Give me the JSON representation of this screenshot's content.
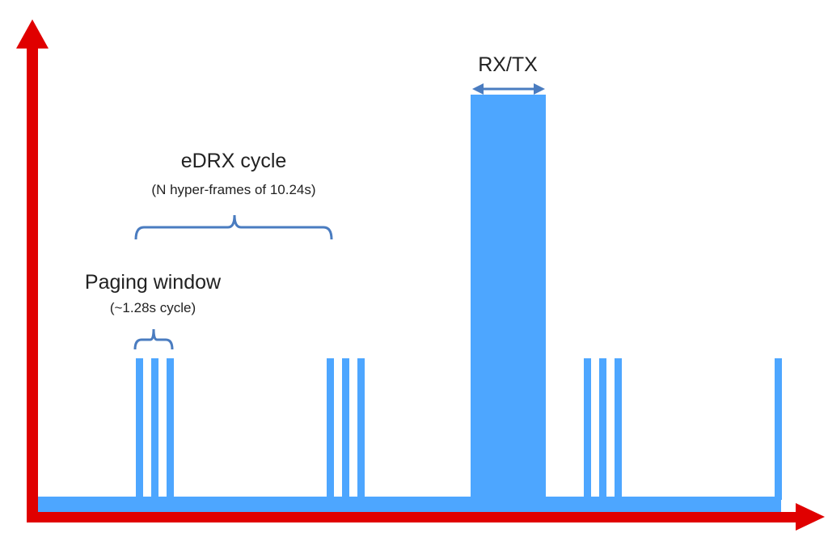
{
  "labels": {
    "rx_tx": "RX/TX",
    "edrx_title": "eDRX cycle",
    "edrx_sub": "(N hyper-frames of 10.24s)",
    "paging_title": "Paging window",
    "paging_sub": "(~1.28s cycle)"
  },
  "colors": {
    "axis": "#e00000",
    "signal": "#4da6ff",
    "brace": "#4a7cc0",
    "text": "#222222"
  }
}
